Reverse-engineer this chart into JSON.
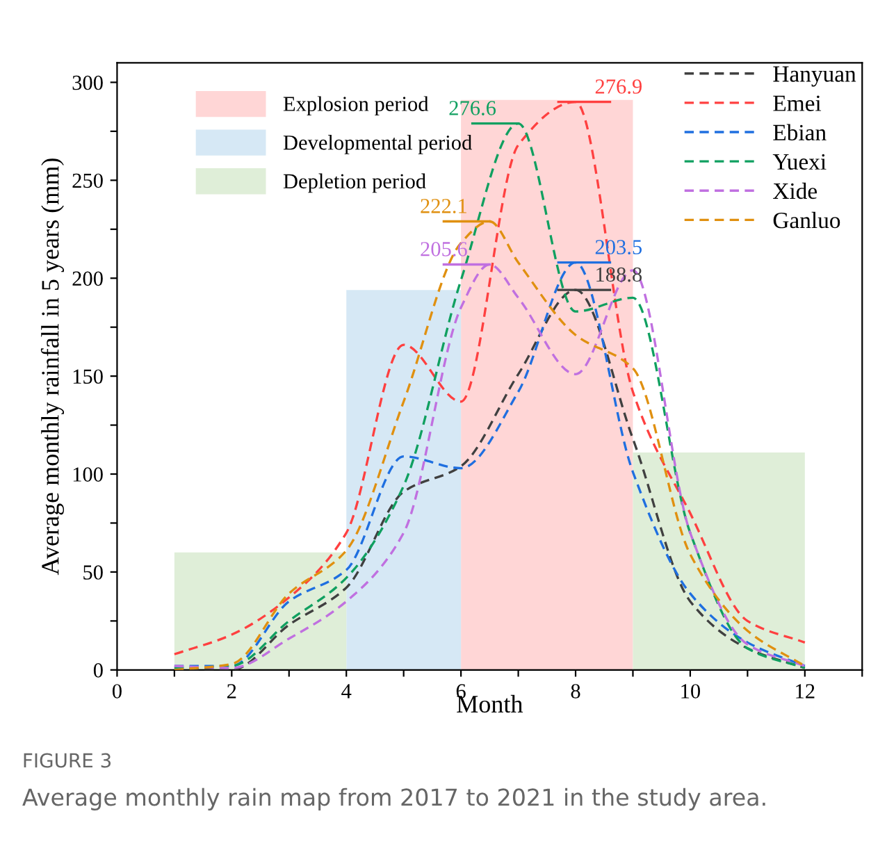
{
  "chart_data": {
    "type": "line",
    "xlabel": "Month",
    "ylabel": "Average monthly rainfall in 5 years (mm)",
    "x": [
      1,
      2,
      3,
      4,
      5,
      6,
      7,
      8,
      9,
      10,
      11,
      12
    ],
    "series": [
      {
        "type": "area",
        "name": "Explosion period",
        "color": "#ffd6d6",
        "x": [
          6,
          9
        ],
        "values": [
          291,
          291
        ]
      },
      {
        "type": "area",
        "name": "Developmental period",
        "color": "#d6e8f5",
        "x": [
          4,
          6
        ],
        "values": [
          194,
          194
        ]
      },
      {
        "type": "area",
        "name": "Depletion period",
        "color": "#dfeed8",
        "x": [
          1,
          4
        ],
        "values": [
          60,
          60
        ]
      },
      {
        "type": "area",
        "color": "#dfeed8",
        "x": [
          9,
          12
        ],
        "values": [
          111,
          111
        ]
      },
      {
        "name": "Hanyuan",
        "color": "#404040",
        "values": [
          1,
          0,
          23,
          42,
          91,
          104,
          151,
          194,
          118,
          35,
          11,
          1
        ]
      },
      {
        "name": "Emei",
        "color": "#ff4040",
        "values": [
          8,
          18,
          37,
          70,
          166,
          137,
          268,
          290,
          142,
          80,
          25,
          14
        ]
      },
      {
        "name": "Ebian",
        "color": "#1f6fe0",
        "values": [
          2,
          2,
          35,
          51,
          109,
          103,
          142,
          208,
          101,
          39,
          14,
          2
        ]
      },
      {
        "name": "Yuexi",
        "color": "#10a060",
        "values": [
          1,
          2,
          25,
          47,
          94,
          199,
          279,
          183,
          190,
          70,
          11,
          1
        ]
      },
      {
        "name": "Xide",
        "color": "#c070e0",
        "x": [
          1,
          2,
          3,
          4,
          5,
          6,
          6.5,
          7,
          8,
          9,
          10,
          11,
          12
        ],
        "values": [
          2,
          1,
          16,
          35,
          70,
          185,
          207,
          190,
          151,
          204,
          70,
          13,
          2
        ]
      },
      {
        "name": "Ganluo",
        "color": "#e09010",
        "x": [
          1,
          2,
          3,
          4,
          5,
          6,
          6.5,
          7,
          8,
          9,
          10,
          11,
          12
        ],
        "values": [
          0,
          3,
          39,
          61,
          137,
          218,
          229,
          208,
          171,
          154,
          59,
          20,
          2
        ]
      }
    ],
    "line_style": "dashed",
    "marker": "none",
    "legend": "top right",
    "grid": false,
    "xlim": [
      0,
      13
    ],
    "xticks": [
      0,
      {
        "value": 1,
        "label": null
      },
      2,
      {
        "value": 3,
        "label": null
      },
      4,
      {
        "value": 5,
        "label": null
      },
      6,
      {
        "value": 7,
        "label": null
      },
      8,
      {
        "value": 9,
        "label": null
      },
      10,
      {
        "value": 11,
        "label": null
      },
      12,
      {
        "value": 13,
        "label": null
      }
    ],
    "ylim": [
      0,
      310
    ],
    "yticks": [
      0,
      {
        "value": 25,
        "label": null
      },
      50,
      {
        "value": 75,
        "label": null
      },
      100,
      {
        "value": 125,
        "label": null
      },
      150,
      {
        "value": 175,
        "label": null
      },
      200,
      {
        "value": 225,
        "label": null
      },
      250,
      {
        "value": 275,
        "label": null
      },
      300
    ],
    "annotations": [
      {
        "text": "276.9",
        "x": 8,
        "y": 290
      },
      {
        "text": "276.6",
        "x": 7,
        "y": 279
      },
      {
        "text": "222.1",
        "x": 6.5,
        "y": 229
      },
      {
        "text": "205.6",
        "x": 6.5,
        "y": 207
      },
      {
        "text": "203.5",
        "x": 8,
        "y": 208
      },
      {
        "text": "188.8",
        "x": 8,
        "y": 194
      },
      "FIGURE 3",
      "Average monthly rain map from 2017 to 2021 in the study area."
    ]
  }
}
